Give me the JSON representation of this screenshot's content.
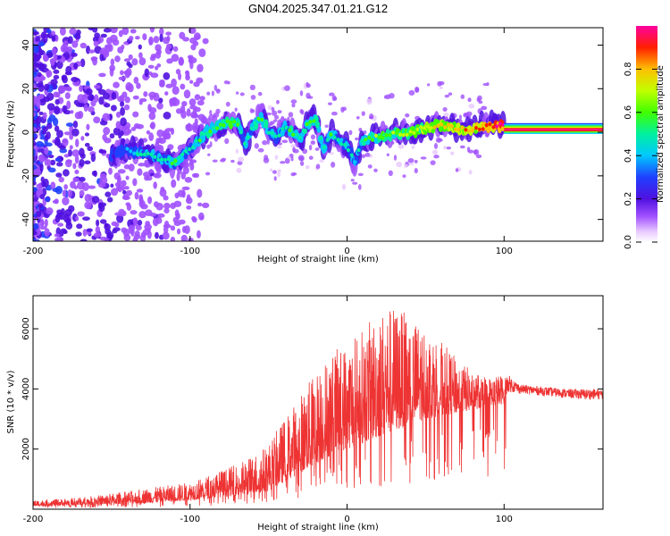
{
  "title": "GN04.2025.347.01.21.G12",
  "chart_data": [
    {
      "type": "heatmap",
      "xlabel": "Height of straight line (km)",
      "ylabel": "Frequency (Hz)",
      "xlim": [
        -200,
        163
      ],
      "ylim": [
        -50,
        48
      ],
      "xticks": [
        -200,
        -100,
        0,
        100
      ],
      "yticks": [
        -40,
        -20,
        0,
        20,
        40
      ],
      "colorbar": {
        "label": "Normalized spectral amplitude",
        "range": [
          0,
          1
        ],
        "ticks": [
          0.0,
          0.2,
          0.4,
          0.6,
          0.8
        ]
      },
      "ridge": {
        "x": [
          -150,
          -140,
          -130,
          -120,
          -110,
          -100,
          -90,
          -80,
          -75,
          -70,
          -65,
          -60,
          -55,
          -50,
          -45,
          -40,
          -35,
          -30,
          -25,
          -20,
          -15,
          -10,
          -5,
          0,
          5,
          10,
          15,
          20,
          30,
          40,
          50,
          60,
          70,
          80,
          90,
          100,
          110,
          120,
          130,
          140,
          150,
          163
        ],
        "freq": [
          -10,
          -8,
          -10,
          -12,
          -14,
          -8,
          0,
          3,
          5,
          4,
          -5,
          2,
          8,
          0,
          -2,
          2,
          0,
          -3,
          4,
          6,
          -8,
          0,
          -4,
          -6,
          -14,
          -4,
          -3,
          -2,
          -1,
          0,
          2,
          3,
          2,
          1,
          3,
          3,
          3,
          3,
          3,
          3,
          3,
          3
        ],
        "amplitude": [
          0.2,
          0.25,
          0.3,
          0.3,
          0.35,
          0.3,
          0.35,
          0.4,
          0.45,
          0.4,
          0.3,
          0.35,
          0.4,
          0.35,
          0.3,
          0.3,
          0.35,
          0.3,
          0.4,
          0.4,
          0.3,
          0.35,
          0.3,
          0.3,
          0.25,
          0.35,
          0.4,
          0.45,
          0.45,
          0.5,
          0.55,
          0.6,
          0.6,
          0.65,
          0.7,
          0.85,
          0.95,
          0.95,
          0.95,
          0.95,
          0.95,
          0.95
        ]
      }
    },
    {
      "type": "line",
      "xlabel": "Height of straight line (km)",
      "ylabel": "SNR (10 * v/v)",
      "xlim": [
        -200,
        163
      ],
      "ylim": [
        0,
        7100
      ],
      "xticks": [
        -200,
        -100,
        0,
        100
      ],
      "yticks": [
        2000,
        4000,
        6000
      ],
      "color": "#ee3333",
      "envelope": {
        "x": [
          -200,
          -180,
          -160,
          -140,
          -120,
          -100,
          -90,
          -80,
          -70,
          -60,
          -50,
          -40,
          -30,
          -20,
          -10,
          0,
          10,
          20,
          30,
          40,
          50,
          60,
          70,
          80,
          90,
          100,
          102,
          110,
          120,
          130,
          140,
          150,
          163
        ],
        "low": [
          100,
          120,
          150,
          180,
          220,
          300,
          350,
          400,
          450,
          500,
          600,
          900,
          1200,
          1500,
          1800,
          2000,
          2200,
          2400,
          2600,
          2800,
          3000,
          3100,
          3200,
          3300,
          3400,
          3500,
          3900,
          3850,
          3800,
          3750,
          3700,
          3650,
          3650
        ],
        "high": [
          300,
          350,
          450,
          600,
          750,
          900,
          1100,
          1300,
          1500,
          1800,
          2200,
          3000,
          3800,
          4600,
          5200,
          5600,
          6000,
          6600,
          6800,
          6400,
          6100,
          5600,
          5000,
          4600,
          4400,
          4500,
          4500,
          4150,
          4100,
          4050,
          4000,
          4000,
          4000
        ]
      }
    }
  ]
}
